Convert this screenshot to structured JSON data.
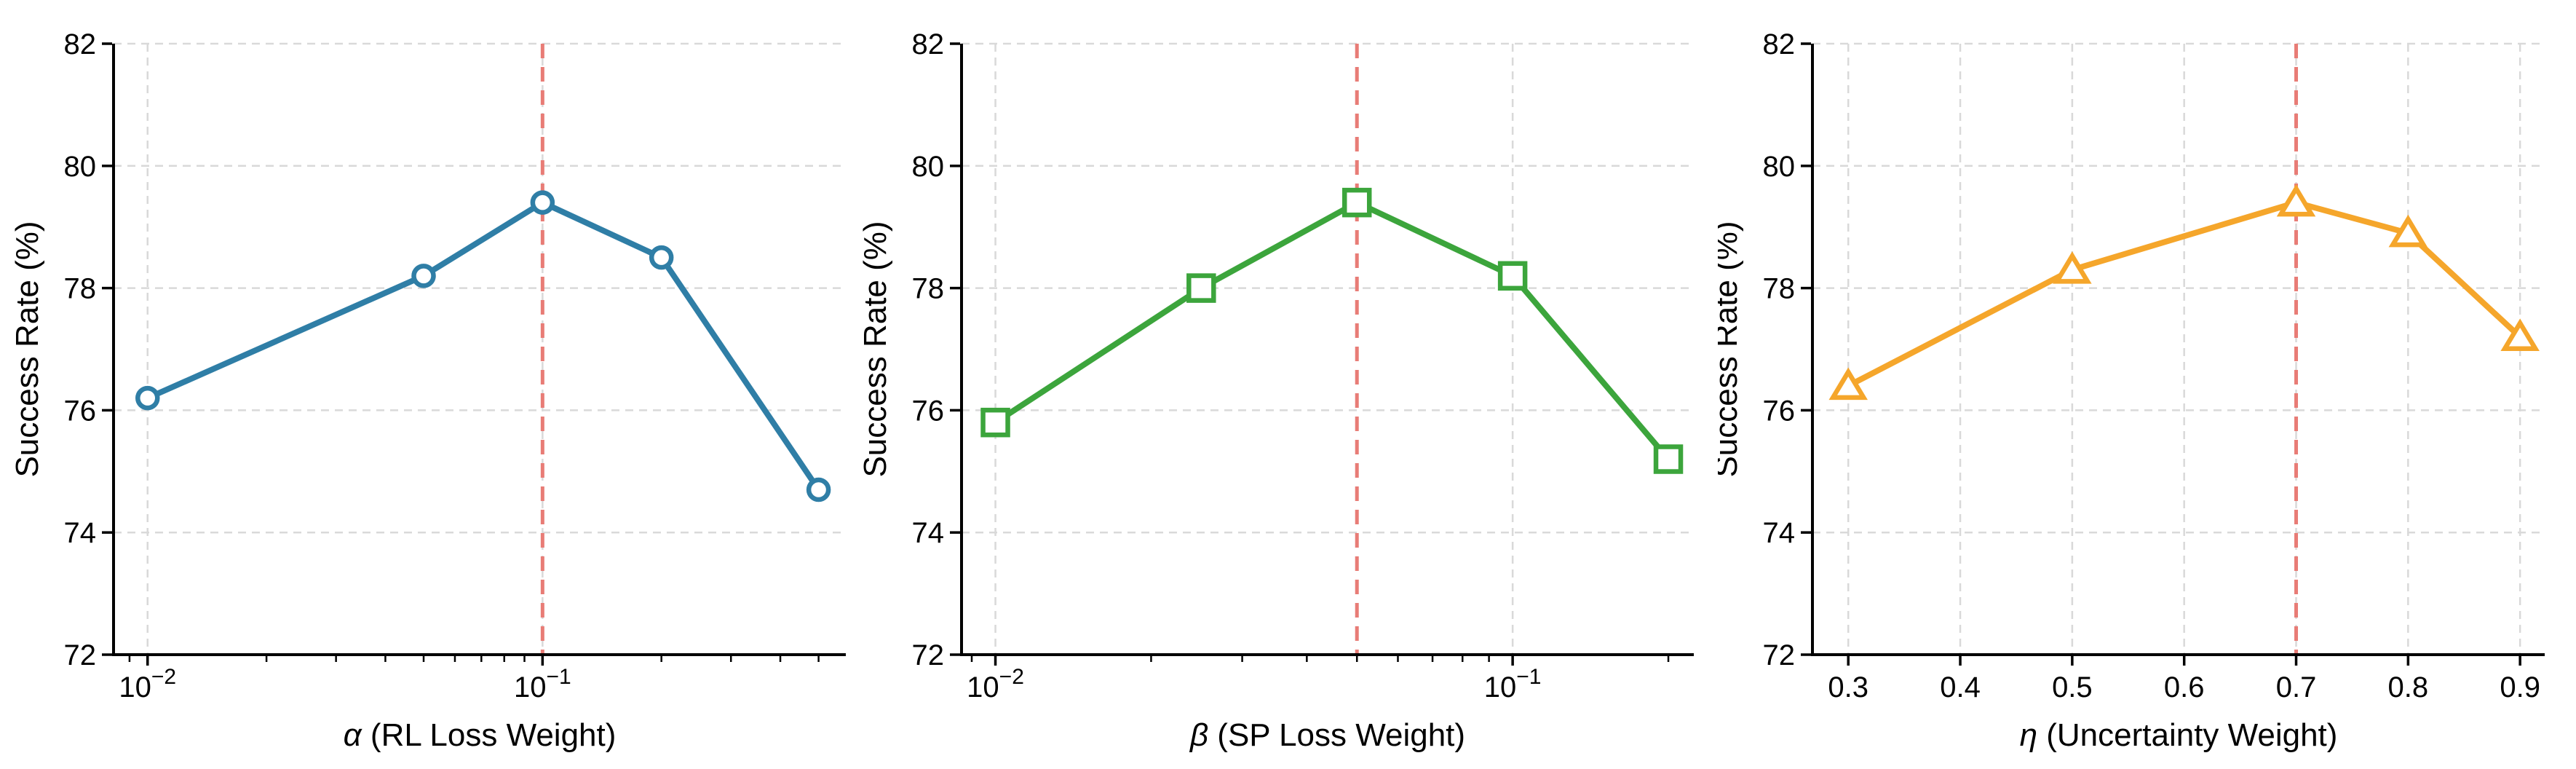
{
  "figure": {
    "background": "#ffffff",
    "grid_color": "#d9d9d9",
    "axis_color": "#000000",
    "ylabel": "Success Rate (%)"
  },
  "chart_data": [
    {
      "type": "line",
      "name": "alpha-ablation",
      "x_scale": "log",
      "x": [
        0.01,
        0.05,
        0.1,
        0.2,
        0.5
      ],
      "y": [
        76.2,
        78.2,
        79.4,
        78.5,
        74.7
      ],
      "marker": "circle",
      "color": "#2F7EA6",
      "xlim": [
        0.0082,
        0.586
      ],
      "ylim": [
        72,
        82
      ],
      "yticks": [
        72,
        74,
        76,
        78,
        80,
        82
      ],
      "xticks": [
        {
          "value": 0.01,
          "label": "10",
          "sup": "−2"
        },
        {
          "value": 0.1,
          "label": "10",
          "sup": "−1"
        }
      ],
      "vline": {
        "x": 0.1,
        "color": "#E87C76"
      },
      "xlabel": {
        "symbol": "α",
        "text": " (RL Loss Weight)"
      },
      "ylabel": "Success Rate (%)",
      "grid": true,
      "legend": null
    },
    {
      "type": "line",
      "name": "beta-ablation",
      "x_scale": "log",
      "x": [
        0.01,
        0.025,
        0.05,
        0.1,
        0.2
      ],
      "y": [
        75.8,
        78.0,
        79.4,
        78.2,
        75.2
      ],
      "marker": "square",
      "color": "#3CA53C",
      "xlim": [
        0.0086,
        0.224
      ],
      "ylim": [
        72,
        82
      ],
      "yticks": [
        72,
        74,
        76,
        78,
        80,
        82
      ],
      "xticks": [
        {
          "value": 0.01,
          "label": "10",
          "sup": "−2"
        },
        {
          "value": 0.1,
          "label": "10",
          "sup": "−1"
        }
      ],
      "vline": {
        "x": 0.05,
        "color": "#E87C76"
      },
      "xlabel": {
        "symbol": "β",
        "text": " (SP Loss Weight)"
      },
      "ylabel": "Success Rate (%)",
      "grid": true,
      "legend": null
    },
    {
      "type": "line",
      "name": "eta-ablation",
      "x_scale": "linear",
      "x": [
        0.3,
        0.5,
        0.7,
        0.8,
        0.9
      ],
      "y": [
        76.4,
        78.3,
        79.4,
        78.9,
        77.2
      ],
      "marker": "triangle",
      "color": "#F5A62B",
      "xlim": [
        0.268,
        0.922
      ],
      "ylim": [
        72,
        82
      ],
      "yticks": [
        72,
        74,
        76,
        78,
        80,
        82
      ],
      "xticks": [
        {
          "value": 0.3,
          "label": "0.3"
        },
        {
          "value": 0.4,
          "label": "0.4"
        },
        {
          "value": 0.5,
          "label": "0.5"
        },
        {
          "value": 0.6,
          "label": "0.6"
        },
        {
          "value": 0.7,
          "label": "0.7"
        },
        {
          "value": 0.8,
          "label": "0.8"
        },
        {
          "value": 0.9,
          "label": "0.9"
        }
      ],
      "vline": {
        "x": 0.7,
        "color": "#E87C76"
      },
      "xlabel": {
        "symbol": "η",
        "text": " (Uncertainty Weight)"
      },
      "ylabel": "Success Rate (%)",
      "grid": true,
      "legend": null
    }
  ]
}
